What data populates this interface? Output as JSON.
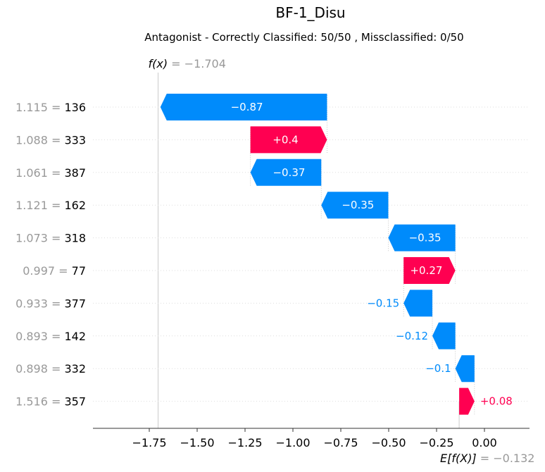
{
  "title": "BF-1_Disu",
  "subtitle": "Antagonist - Correctly Classified: 50/50 , Missclassified: 0/50",
  "colors": {
    "positive": "#ff0051",
    "negative": "#008bfb",
    "grid": "#cccccc",
    "muted": "#999999"
  },
  "chart_data": {
    "type": "waterfall",
    "title": "BF-1_Disu",
    "subtitle": "Antagonist - Correctly Classified: 50/50 , Missclassified: 0/50",
    "fx": {
      "prefix": "f(x)",
      "value_text": "= −1.704",
      "value": -1.704
    },
    "efx": {
      "prefix": "E[f(X)]",
      "value_text": "= −0.132",
      "value": -0.132
    },
    "xlim": [
      -2.05,
      0.23
    ],
    "xticks": [
      -1.75,
      -1.5,
      -1.25,
      -1.0,
      -0.75,
      -0.5,
      -0.25,
      0.0
    ],
    "xtick_labels": [
      "−1.75",
      "−1.50",
      "−1.25",
      "−1.00",
      "−0.75",
      "−0.50",
      "−0.25",
      "0.00"
    ],
    "features": [
      {
        "value": "1.115",
        "name": "136",
        "shap": -0.87,
        "label": "−0.87"
      },
      {
        "value": "1.088",
        "name": "333",
        "shap": 0.4,
        "label": "+0.4"
      },
      {
        "value": "1.061",
        "name": "387",
        "shap": -0.37,
        "label": "−0.37"
      },
      {
        "value": "1.121",
        "name": "162",
        "shap": -0.35,
        "label": "−0.35"
      },
      {
        "value": "1.073",
        "name": "318",
        "shap": -0.35,
        "label": "−0.35"
      },
      {
        "value": "0.997",
        "name": "77",
        "shap": 0.27,
        "label": "+0.27"
      },
      {
        "value": "0.933",
        "name": "377",
        "shap": -0.15,
        "label": "−0.15"
      },
      {
        "value": "0.893",
        "name": "142",
        "shap": -0.12,
        "label": "−0.12"
      },
      {
        "value": "0.898",
        "name": "332",
        "shap": -0.1,
        "label": "−0.1"
      },
      {
        "value": "1.516",
        "name": "357",
        "shap": 0.08,
        "label": "+0.08"
      }
    ]
  }
}
